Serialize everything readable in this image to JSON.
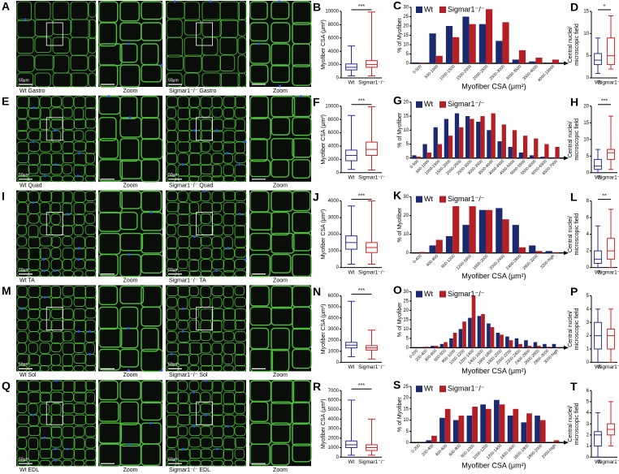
{
  "figure": {
    "rows": [
      {
        "letter": "A",
        "captions": [
          "Wt Gastro",
          "Zoom",
          "Sigmar1⁻/⁻ Gastro",
          "Zoom"
        ]
      },
      {
        "letter": "E",
        "captions": [
          "Wt Quad",
          "Zoom",
          "Sigmar1⁻/⁻ Quad",
          "Zoom"
        ]
      },
      {
        "letter": "I",
        "captions": [
          "Wt TA",
          "Zoom",
          "Sigmar1⁻/⁻ TA",
          "Zoom"
        ]
      },
      {
        "letter": "M",
        "captions": [
          "Wt Sol",
          "Zoom",
          "Sigmar1⁻/⁻ Sol",
          "Zoom"
        ]
      },
      {
        "letter": "Q",
        "captions": [
          "Wt EDL",
          "Zoom",
          "Sigmar1⁻/⁻ EDL",
          "Zoom"
        ]
      }
    ],
    "scale_label": "50μm"
  },
  "chart_data": [
    {
      "type": "box",
      "panel": "B",
      "ylabel": [
        "Myofiber CSA (μm²)"
      ],
      "categories": [
        "Wt",
        "Sigmar1⁻/⁻"
      ],
      "colors": [
        "#2b2ba0",
        "#d42020"
      ],
      "min": [
        300,
        300
      ],
      "q1": [
        1200,
        1600
      ],
      "median": [
        1600,
        2000
      ],
      "q3": [
        2100,
        2600
      ],
      "max": [
        4800,
        9900
      ],
      "ylim": [
        0,
        10000
      ],
      "yticks": [
        0,
        2000,
        4000,
        6000,
        8000,
        10000
      ],
      "significance": "***"
    },
    {
      "type": "bar",
      "panel": "C",
      "ylabel": "% of Myofiber",
      "xlabel": "Myofiber CSA (μm²)",
      "categories": [
        "0-500",
        "500-1000",
        "1000-1500",
        "1500-2000",
        "2000-2500",
        "2500-3000",
        "3000-3500",
        "3500-4000",
        "4000-10000"
      ],
      "series": [
        {
          "name": "Wt",
          "color": "#1b2a6e",
          "values": [
            0.5,
            16,
            20,
            25,
            21,
            12,
            2,
            1,
            0
          ]
        },
        {
          "name": "Sigmar1⁻/⁻",
          "color": "#b51f24",
          "values": [
            0.3,
            4,
            14,
            21,
            29,
            22,
            7,
            3,
            2
          ]
        }
      ],
      "ylim": [
        0,
        30
      ],
      "yticks": [
        0,
        5,
        10,
        15,
        20,
        25,
        30
      ]
    },
    {
      "type": "box",
      "panel": "D",
      "ylabel": [
        "Central nuclei/",
        "microscopic field"
      ],
      "categories": [
        "Wt",
        "Sigmar1⁻/⁻"
      ],
      "colors": [
        "#2b2ba0",
        "#d42020"
      ],
      "min": [
        1,
        2
      ],
      "q1": [
        3,
        3
      ],
      "median": [
        4,
        5
      ],
      "q3": [
        5.5,
        9
      ],
      "max": [
        9,
        14
      ],
      "ylim": [
        0,
        15
      ],
      "yticks": [
        0,
        5,
        10,
        15
      ],
      "significance": "*"
    },
    {
      "type": "box",
      "panel": "F",
      "ylabel": [
        "Myofiber CSA (μm²)"
      ],
      "categories": [
        "Wt",
        "Sigmar1⁻/⁻"
      ],
      "colors": [
        "#2b2ba0",
        "#d42020"
      ],
      "min": [
        500,
        400
      ],
      "q1": [
        1800,
        2600
      ],
      "median": [
        2600,
        3500
      ],
      "q3": [
        3400,
        4600
      ],
      "max": [
        8600,
        9900
      ],
      "ylim": [
        0,
        10000
      ],
      "yticks": [
        0,
        2000,
        4000,
        6000,
        8000,
        10000
      ],
      "significance": "***"
    },
    {
      "type": "bar",
      "panel": "G",
      "ylabel": "% of Myofiber",
      "categories": [
        "0-500",
        "500-1000",
        "1000-1500",
        "1500-2000",
        "2000-2500",
        "2500-3000",
        "3000-3500",
        "3500-4000",
        "4000-4500",
        "4500-5000",
        "5000-5500",
        "5500-6000",
        "6000-6500",
        "6500-7000"
      ],
      "series": [
        {
          "name": "Wt",
          "color": "#1b2a6e",
          "values": [
            1,
            5,
            11,
            14,
            16,
            15,
            13,
            10,
            6,
            4,
            2,
            1,
            0.5,
            0.3
          ]
        },
        {
          "name": "Sigmar1⁻/⁻",
          "color": "#b51f24",
          "values": [
            0.5,
            2,
            5,
            8,
            11,
            14,
            15,
            16,
            12,
            10,
            8,
            7,
            5,
            4
          ]
        }
      ],
      "ylim": [
        0,
        20
      ],
      "yticks": [
        0,
        5,
        10,
        15,
        20
      ]
    },
    {
      "type": "box",
      "panel": "H",
      "ylabel": [
        "Central nuclei/",
        "microscopic field"
      ],
      "categories": [
        "Wt",
        "Sigmar1⁻/⁻"
      ],
      "colors": [
        "#2b2ba0",
        "#d42020"
      ],
      "min": [
        0,
        1
      ],
      "q1": [
        1,
        4
      ],
      "median": [
        2,
        6
      ],
      "q3": [
        4,
        7
      ],
      "max": [
        7,
        17
      ],
      "ylim": [
        0,
        20
      ],
      "yticks": [
        0,
        5,
        10,
        15,
        20
      ],
      "significance": "***"
    },
    {
      "type": "box",
      "panel": "J",
      "ylabel": [
        "Myofiber CSA (μm²)"
      ],
      "categories": [
        "Wt",
        "Sigmar1⁻/⁻"
      ],
      "colors": [
        "#2b2ba0",
        "#d42020"
      ],
      "min": [
        200,
        200
      ],
      "q1": [
        1100,
        900
      ],
      "median": [
        1500,
        1200
      ],
      "q3": [
        1900,
        1500
      ],
      "max": [
        3700,
        4000
      ],
      "ylim": [
        0,
        4000
      ],
      "yticks": [
        0,
        1000,
        2000,
        3000,
        4000
      ],
      "significance": "***"
    },
    {
      "type": "bar",
      "panel": "K",
      "ylabel": "% of Myofiber",
      "xlabel": "Myofiber CSA (μm²)",
      "categories": [
        "0-400",
        "400-800",
        "800-1200",
        "1200-1600",
        "1600-2000",
        "2000-2400",
        "2400-2800",
        "2800-3200",
        "3200-high"
      ],
      "series": [
        {
          "name": "Wt",
          "color": "#1b2a6e",
          "values": [
            0,
            4,
            9,
            15,
            23,
            24,
            15,
            4,
            1
          ]
        },
        {
          "name": "Sigmar1⁻/⁻",
          "color": "#b51f24",
          "values": [
            0.5,
            7,
            25,
            25,
            23,
            18,
            3,
            1,
            0.3
          ]
        }
      ],
      "ylim": [
        0,
        30
      ],
      "yticks": [
        0,
        10,
        20,
        30
      ]
    },
    {
      "type": "box",
      "panel": "L",
      "ylabel": [
        "Central nuclei/",
        "microscopic field"
      ],
      "categories": [
        "Wt",
        "Sigmar1⁻/⁻"
      ],
      "colors": [
        "#2b2ba0",
        "#d42020"
      ],
      "min": [
        0,
        0
      ],
      "q1": [
        0.5,
        1
      ],
      "median": [
        1,
        2
      ],
      "q3": [
        2,
        3.5
      ],
      "max": [
        5,
        7
      ],
      "ylim": [
        0,
        8
      ],
      "yticks": [
        0,
        2,
        4,
        6,
        8
      ],
      "significance": "**"
    },
    {
      "type": "box",
      "panel": "N",
      "ylabel": [
        "Myofiber CSA (μm²)"
      ],
      "categories": [
        "Wt",
        "Sigmar1⁻/⁻"
      ],
      "colors": [
        "#2b2ba0",
        "#d42020"
      ],
      "min": [
        500,
        300
      ],
      "q1": [
        1300,
        1100
      ],
      "median": [
        1550,
        1300
      ],
      "q3": [
        1800,
        1500
      ],
      "max": [
        5500,
        2900
      ],
      "ylim": [
        0,
        6000
      ],
      "yticks": [
        0,
        1000,
        2000,
        3000,
        4000,
        5000,
        6000
      ],
      "significance": "***"
    },
    {
      "type": "bar",
      "panel": "O",
      "ylabel": "% of Myofiber",
      "xlabel": "Myofiber CSA (μm²)",
      "categories": [
        "0-200",
        "200-400",
        "400-600",
        "600-800",
        "800-1000",
        "1000-1200",
        "1200-1400",
        "1400-1600",
        "1600-1800",
        "1800-2000",
        "2000-2200",
        "2200-2400",
        "2400-2600",
        "2600-2800",
        "2800-3000",
        "3000-high"
      ],
      "series": [
        {
          "name": "Wt",
          "color": "#1b2a6e",
          "values": [
            0,
            0,
            1,
            2,
            5,
            10,
            16,
            17,
            13,
            8,
            6,
            5,
            4,
            3,
            2,
            2
          ]
        },
        {
          "name": "Sigmar1⁻/⁻",
          "color": "#b51f24",
          "values": [
            0,
            0.5,
            1,
            3,
            8,
            14,
            28,
            18,
            11,
            7,
            4,
            2,
            1,
            1,
            0.5,
            0.3
          ]
        }
      ],
      "ylim": [
        0,
        30
      ],
      "yticks": [
        0,
        5,
        10,
        15,
        20,
        25,
        30
      ]
    },
    {
      "type": "box",
      "panel": "P",
      "ylabel": [
        "Central nuclei/",
        "microscopic field"
      ],
      "categories": [
        "Wt",
        "Sigmar1⁻/⁻"
      ],
      "colors": [
        "#2b2ba0",
        "#d42020"
      ],
      "min": [
        0,
        0
      ],
      "q1": [
        1,
        1
      ],
      "median": [
        2,
        2
      ],
      "q3": [
        3,
        2.5
      ],
      "max": [
        4,
        4
      ],
      "ylim": [
        0,
        5
      ],
      "yticks": [
        0,
        1,
        2,
        3,
        4,
        5
      ]
    },
    {
      "type": "box",
      "panel": "R",
      "ylabel": [
        "Myofiber CSA (μm²)"
      ],
      "categories": [
        "Wt",
        "Sigmar1⁻/⁻"
      ],
      "colors": [
        "#2b2ba0",
        "#d42020"
      ],
      "min": [
        200,
        200
      ],
      "q1": [
        1000,
        700
      ],
      "median": [
        1300,
        1000
      ],
      "q3": [
        1700,
        1300
      ],
      "max": [
        6000,
        4000
      ],
      "ylim": [
        0,
        7000
      ],
      "yticks": [
        0,
        1000,
        2000,
        3000,
        4000,
        5000,
        6000,
        7000
      ],
      "significance": "***"
    },
    {
      "type": "bar",
      "panel": "S",
      "ylabel": "% of Myofiber",
      "xlabel": "Myofiber CSA (μm²)",
      "categories": [
        "0-200",
        "200-400",
        "400-600",
        "600-800",
        "800-1000",
        "1000-1200",
        "1200-1400",
        "1400-1600",
        "1600-1800",
        "1800-2000",
        "2000-high"
      ],
      "series": [
        {
          "name": "Wt",
          "color": "#1b2a6e",
          "values": [
            0,
            1,
            11,
            10,
            12,
            17,
            19,
            12,
            9,
            12,
            0
          ]
        },
        {
          "name": "Sigmar1⁻/⁻",
          "color": "#b51f24",
          "values": [
            0,
            3,
            15,
            12,
            16,
            15,
            17,
            15,
            13,
            10,
            1
          ]
        }
      ],
      "ylim": [
        0,
        25
      ],
      "yticks": [
        0,
        5,
        10,
        15,
        20,
        25
      ]
    },
    {
      "type": "box",
      "panel": "T",
      "ylabel": [
        "Central nuclei/",
        "microscopic field"
      ],
      "categories": [
        "Wt",
        "Sigmar1⁻/⁻"
      ],
      "colors": [
        "#2b2ba0",
        "#d42020"
      ],
      "min": [
        0,
        1
      ],
      "q1": [
        1,
        2
      ],
      "median": [
        2,
        2.5
      ],
      "q3": [
        2.3,
        3
      ],
      "max": [
        4,
        5
      ],
      "ylim": [
        0,
        6
      ],
      "yticks": [
        0,
        1,
        2,
        3,
        4,
        5,
        6
      ]
    }
  ]
}
